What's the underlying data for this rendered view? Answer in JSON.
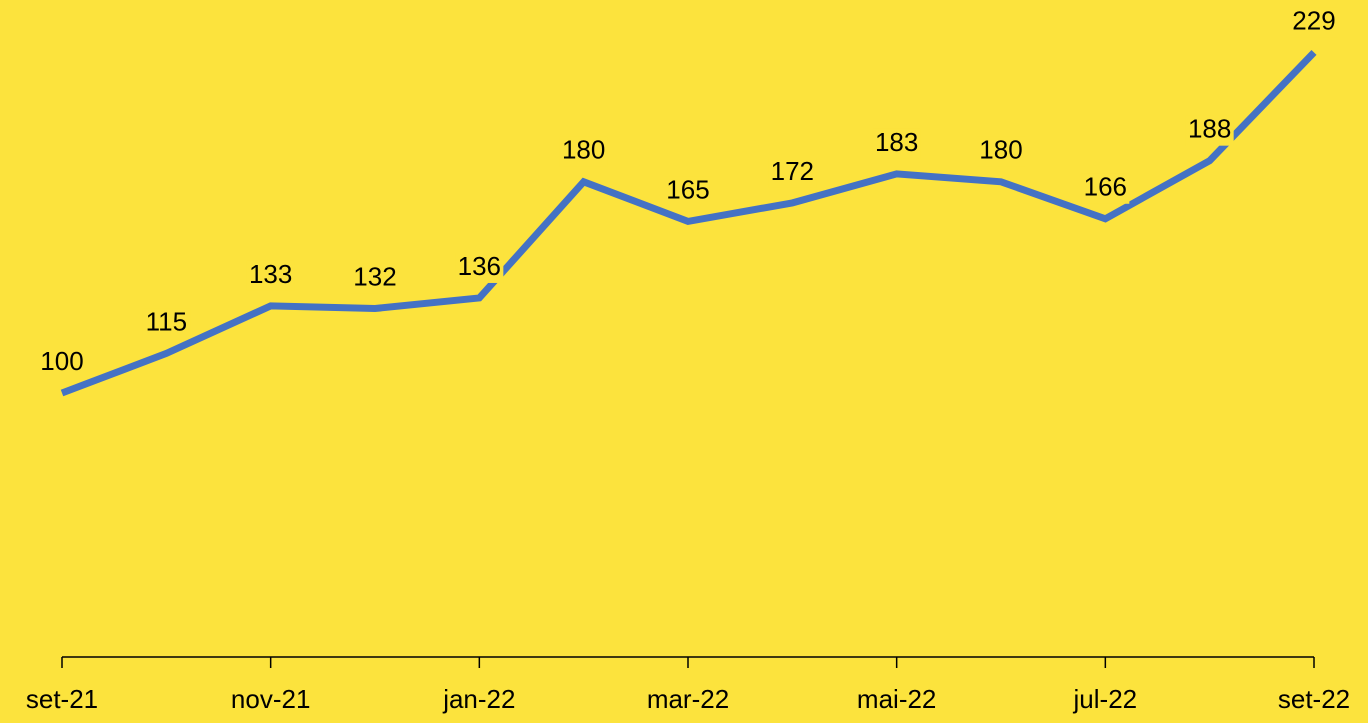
{
  "chart_data": {
    "type": "line",
    "categories": [
      "set-21",
      null,
      "nov-21",
      null,
      "jan-22",
      null,
      "mar-22",
      null,
      "mai-22",
      null,
      "jul-22",
      null,
      "set-22"
    ],
    "series": [
      {
        "color": "#4472c4",
        "values": [
          100,
          115,
          133,
          132,
          136,
          180,
          165,
          172,
          183,
          180,
          166,
          188,
          229
        ]
      }
    ],
    "ylim": [
      0,
      250
    ],
    "background": "#fce33d"
  }
}
